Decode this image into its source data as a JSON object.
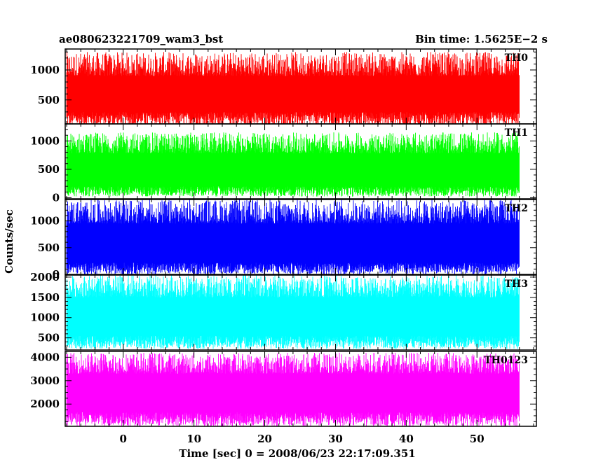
{
  "header": {
    "left": "ae080623221709_wam3_bst",
    "right": "Bin time: 1.5625E−2 s"
  },
  "chart_data": {
    "type": "line",
    "ylabel": "Counts/sec",
    "xlabel": "Time [sec] 0 = 2008/06/23 22:17:09.351",
    "xlim": [
      -8.2,
      58.4
    ],
    "x_start": -8.0,
    "x_end": 56.0,
    "x_ticks": [
      0,
      10,
      20,
      30,
      40,
      50
    ],
    "x_tick_labels": [
      "0",
      "10",
      "20",
      "30",
      "40",
      "50"
    ],
    "panels": [
      {
        "label": "TH0",
        "color": "#ff0000",
        "ylim": [
          100,
          1350
        ],
        "y_ticks": [
          500,
          1000
        ],
        "y_tick_labels": [
          "500",
          "1000"
        ],
        "low_band": [
          60,
          300
        ],
        "high_band": [
          900,
          1300
        ]
      },
      {
        "label": "TH1",
        "color": "#00ff00",
        "ylim": [
          -20,
          1300
        ],
        "y_ticks": [
          0,
          500,
          1000
        ],
        "y_tick_labels": [
          "0",
          "500",
          "1000"
        ],
        "low_band": [
          20,
          200
        ],
        "high_band": [
          780,
          1150
        ]
      },
      {
        "label": "TH2",
        "color": "#0000ff",
        "ylim": [
          0,
          1400
        ],
        "y_ticks": [
          0,
          500,
          1000
        ],
        "y_tick_labels": [
          "0",
          "500",
          "1000"
        ],
        "low_band": [
          0,
          220
        ],
        "high_band": [
          950,
          1400
        ]
      },
      {
        "label": "TH3",
        "color": "#00ffff",
        "ylim": [
          200,
          2050
        ],
        "y_ticks": [
          500,
          1000,
          1500,
          2000
        ],
        "y_tick_labels": [
          "500",
          "1000",
          "1500",
          "2000"
        ],
        "low_band": [
          230,
          550
        ],
        "high_band": [
          1500,
          2050
        ]
      },
      {
        "label": "TH0123",
        "color": "#ff00ff",
        "ylim": [
          1050,
          4250
        ],
        "y_ticks": [
          2000,
          3000,
          4000
        ],
        "y_tick_labels": [
          "2000",
          "3000",
          "4000"
        ],
        "low_band": [
          1050,
          1650
        ],
        "high_band": [
          3300,
          4200
        ]
      }
    ]
  }
}
